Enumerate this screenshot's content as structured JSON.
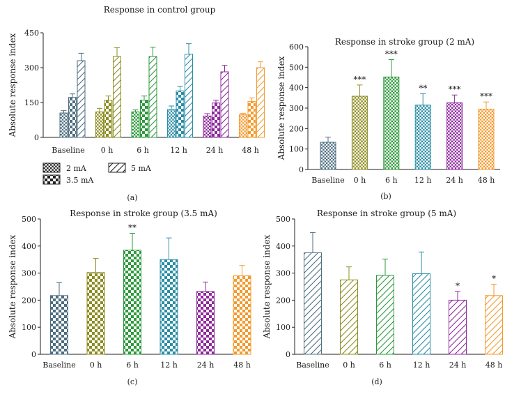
{
  "chart_data": [
    {
      "panel": "(a)",
      "type": "bar",
      "title": "Response in control group",
      "ylabel": "Absolute response index",
      "xlabel": "",
      "ylim": [
        0,
        450
      ],
      "yticks": [
        0,
        150,
        300,
        450
      ],
      "categories": [
        "Baseline",
        "0 h",
        "6 h",
        "12 h",
        "24 h",
        "48 h"
      ],
      "category_colors": [
        "#4e6e80",
        "#8c8c22",
        "#2e9a3c",
        "#2b8ea6",
        "#8e2a9c",
        "#f39a2e"
      ],
      "series": [
        {
          "name": "2 mA",
          "pattern": "fine-checker",
          "values": [
            105,
            110,
            110,
            120,
            92,
            98
          ],
          "errors": [
            10,
            15,
            8,
            15,
            10,
            6
          ]
        },
        {
          "name": "3.5 mA",
          "pattern": "checker",
          "values": [
            172,
            160,
            160,
            200,
            148,
            155
          ],
          "errors": [
            15,
            18,
            18,
            20,
            12,
            15
          ]
        },
        {
          "name": "5 mA",
          "pattern": "diagonal",
          "values": [
            330,
            348,
            348,
            358,
            282,
            300
          ],
          "errors": [
            32,
            38,
            40,
            45,
            28,
            25
          ]
        }
      ],
      "legend": [
        "2 mA",
        "5 mA",
        "3.5 mA"
      ]
    },
    {
      "panel": "(b)",
      "type": "bar",
      "title": "Response in stroke group (2 mA)",
      "ylabel": "Absolute response index",
      "xlabel": "",
      "ylim": [
        0,
        600
      ],
      "yticks": [
        0,
        100,
        200,
        300,
        400,
        500,
        600
      ],
      "categories": [
        "Baseline",
        "0 h",
        "6 h",
        "12 h",
        "24 h",
        "48 h"
      ],
      "category_colors": [
        "#4e6e80",
        "#8c8c22",
        "#2e9a3c",
        "#2b8ea6",
        "#8e2a9c",
        "#f39a2e"
      ],
      "pattern": "fine-checker",
      "values": [
        133,
        358,
        452,
        315,
        326,
        295
      ],
      "errors": [
        25,
        55,
        85,
        55,
        38,
        35
      ],
      "annotations": [
        "",
        "***",
        "***",
        "**",
        "***",
        "***"
      ]
    },
    {
      "panel": "(c)",
      "type": "bar",
      "title": "Response in stroke group (3.5 mA)",
      "ylabel": "Absolute response index",
      "xlabel": "",
      "ylim": [
        0,
        500
      ],
      "yticks": [
        0,
        100,
        200,
        300,
        400,
        500
      ],
      "categories": [
        "Baseline",
        "0 h",
        "6 h",
        "12 h",
        "24 h",
        "48 h"
      ],
      "category_colors": [
        "#4e6e80",
        "#8c8c22",
        "#2e9a3c",
        "#2b8ea6",
        "#8e2a9c",
        "#f39a2e"
      ],
      "pattern": "checker",
      "values": [
        217,
        302,
        385,
        350,
        232,
        290
      ],
      "errors": [
        48,
        52,
        62,
        80,
        35,
        38
      ],
      "annotations": [
        "",
        "",
        "**",
        "",
        "",
        ""
      ]
    },
    {
      "panel": "(d)",
      "type": "bar",
      "title": "Response in stroke group (5 mA)",
      "ylabel": "Absolute response index",
      "xlabel": "",
      "ylim": [
        0,
        500
      ],
      "yticks": [
        0,
        100,
        200,
        300,
        400,
        500
      ],
      "categories": [
        "Baseline",
        "0 h",
        "6 h",
        "12 h",
        "24 h",
        "48 h"
      ],
      "category_colors": [
        "#4e6e80",
        "#8c8c22",
        "#2e9a3c",
        "#2b8ea6",
        "#8e2a9c",
        "#f39a2e"
      ],
      "pattern": "diagonal",
      "values": [
        375,
        275,
        292,
        298,
        200,
        217
      ],
      "errors": [
        75,
        48,
        60,
        80,
        32,
        42
      ],
      "annotations": [
        "",
        "",
        "",
        "",
        "*",
        "*"
      ]
    }
  ]
}
